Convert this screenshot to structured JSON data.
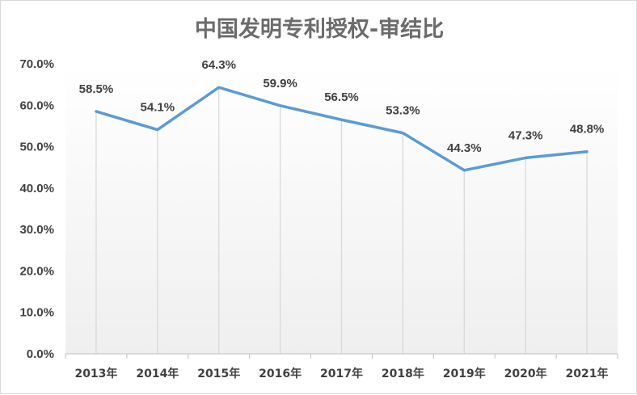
{
  "chart_data": {
    "type": "line",
    "title": "中国发明专利授权-审结比",
    "categories": [
      "2013年",
      "2014年",
      "2015年",
      "2016年",
      "2017年",
      "2018年",
      "2019年",
      "2020年",
      "2021年"
    ],
    "series": [
      {
        "values": [
          58.5,
          54.1,
          64.3,
          59.9,
          56.5,
          53.3,
          44.3,
          47.3,
          48.8
        ],
        "labels": [
          "58.5%",
          "54.1%",
          "64.3%",
          "59.9%",
          "56.5%",
          "53.3%",
          "44.3%",
          "47.3%",
          "48.8%"
        ]
      }
    ],
    "y_ticks": [
      "0.0%",
      "10.0%",
      "20.0%",
      "30.0%",
      "40.0%",
      "50.0%",
      "60.0%",
      "70.0%"
    ],
    "ylim": [
      0,
      70
    ],
    "xlabel": "",
    "ylabel": "",
    "grid": "vertical drop lines",
    "legend": "none",
    "colors": {
      "line": "#5b9bd5",
      "drop_line": "#d9d9d9",
      "text": "#404040",
      "title": "#6b6b6b",
      "background_fade": "#efefef"
    }
  }
}
